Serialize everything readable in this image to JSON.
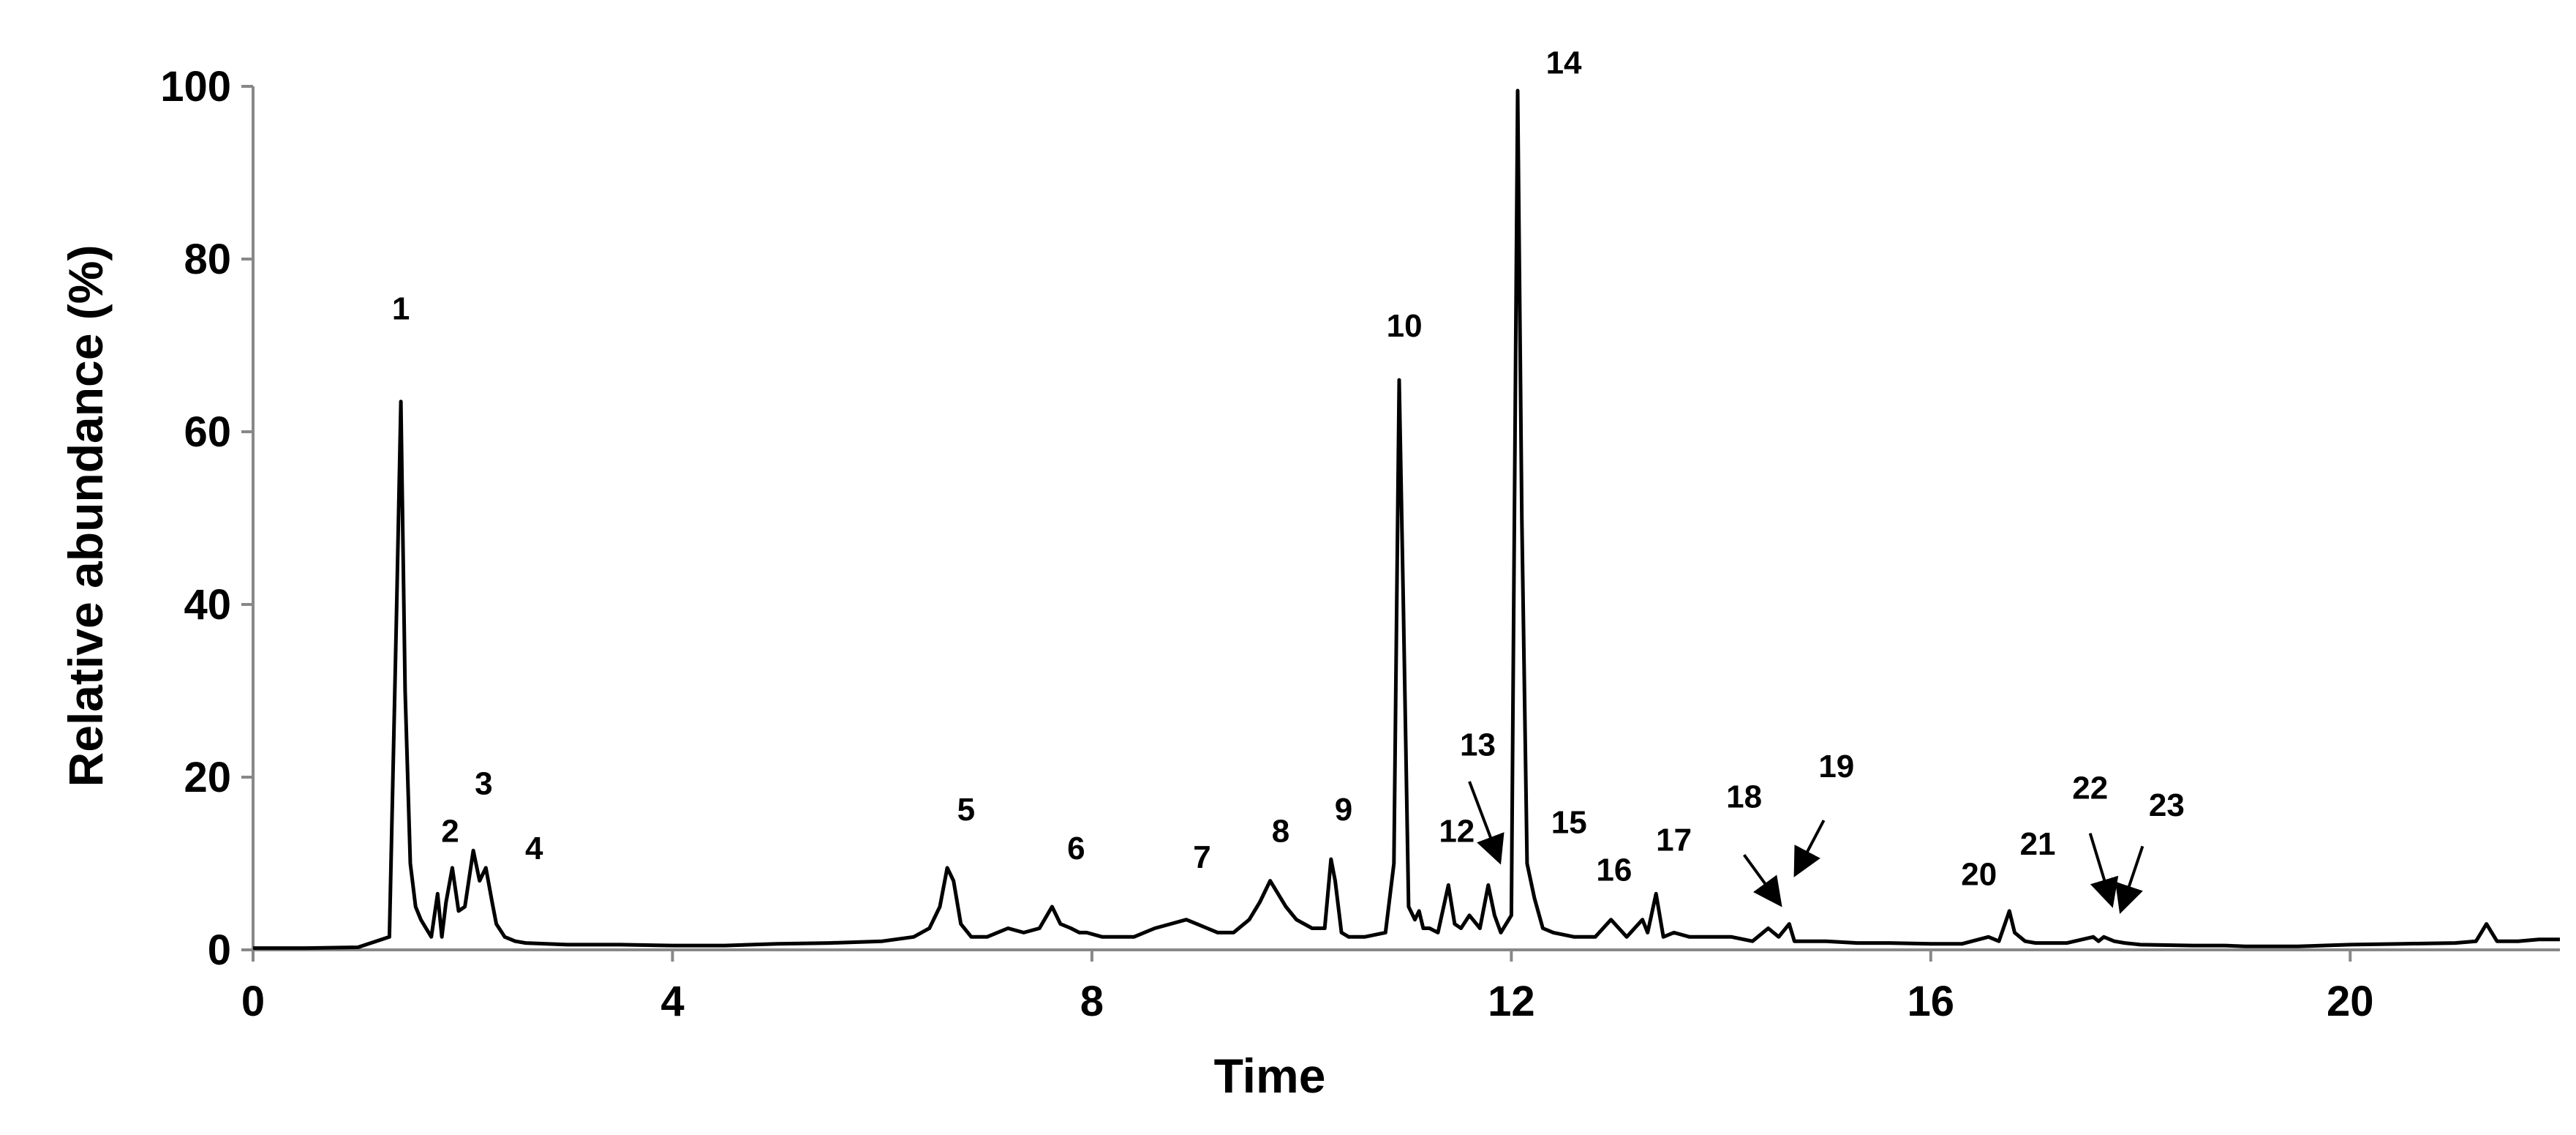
{
  "chart_data": {
    "type": "line",
    "title": "",
    "xlabel": "Time",
    "ylabel": "Relative abundance (%)",
    "xlim": [
      0,
      22
    ],
    "ylim": [
      0,
      100
    ],
    "xticks": [
      0,
      4,
      8,
      12,
      16,
      20
    ],
    "yticks": [
      0,
      20,
      40,
      60,
      80,
      100
    ],
    "grid": false,
    "series": [
      {
        "x": [
          0,
          0.5,
          1.0,
          1.3,
          1.37,
          1.41,
          1.45,
          1.5,
          1.55,
          1.6,
          1.65,
          1.7,
          1.76,
          1.8,
          1.84,
          1.9,
          1.96,
          2.02,
          2.1,
          2.16,
          2.22,
          2.28,
          2.32,
          2.4,
          2.5,
          2.6,
          3.0,
          3.5,
          4.0,
          4.5,
          5.0,
          5.5,
          6.0,
          6.3,
          6.45,
          6.55,
          6.62,
          6.68,
          6.75,
          6.85,
          7.0,
          7.2,
          7.35,
          7.5,
          7.62,
          7.7,
          7.8,
          7.88,
          7.95,
          8.1,
          8.4,
          8.6,
          8.75,
          8.9,
          9.0,
          9.1,
          9.2,
          9.35,
          9.5,
          9.6,
          9.7,
          9.75,
          9.85,
          9.95,
          10.1,
          10.22,
          10.28,
          10.32,
          10.38,
          10.45,
          10.6,
          10.8,
          10.88,
          10.93,
          10.97,
          11.02,
          11.08,
          11.12,
          11.16,
          11.22,
          11.3,
          11.4,
          11.46,
          11.52,
          11.6,
          11.7,
          11.78,
          11.84,
          11.9,
          12.0,
          12.06,
          12.1,
          12.15,
          12.22,
          12.3,
          12.4,
          12.6,
          12.8,
          12.95,
          13.1,
          13.25,
          13.3,
          13.38,
          13.45,
          13.55,
          13.7,
          13.9,
          14.1,
          14.3,
          14.45,
          14.55,
          14.65,
          14.7,
          14.8,
          15.0,
          15.3,
          15.6,
          16.0,
          16.3,
          16.55,
          16.65,
          16.75,
          16.8,
          16.9,
          17.0,
          17.3,
          17.55,
          17.6,
          17.65,
          17.75,
          17.85,
          18.0,
          18.5,
          18.8,
          19.0,
          19.5,
          20.0,
          20.5,
          21.0,
          21.2,
          21.3,
          21.4,
          21.6,
          21.8,
          22.0
        ],
        "y": [
          0.2,
          0.2,
          0.3,
          1.5,
          40.0,
          63.5,
          30.0,
          10.0,
          5.0,
          3.5,
          2.5,
          1.5,
          6.5,
          1.5,
          5.5,
          9.5,
          4.5,
          5.0,
          11.5,
          8.0,
          9.5,
          5.5,
          3.0,
          1.5,
          1.0,
          0.8,
          0.6,
          0.6,
          0.5,
          0.5,
          0.7,
          0.8,
          1.0,
          1.5,
          2.5,
          5.0,
          9.5,
          8.0,
          3.0,
          1.5,
          1.5,
          2.5,
          2.0,
          2.5,
          5.0,
          3.0,
          2.5,
          2.0,
          2.0,
          1.5,
          1.5,
          2.5,
          3.0,
          3.5,
          3.0,
          2.5,
          2.0,
          2.0,
          3.5,
          5.5,
          8.0,
          7.0,
          5.0,
          3.5,
          2.5,
          2.5,
          10.5,
          8.0,
          2.0,
          1.5,
          1.5,
          2.0,
          10.0,
          66.0,
          40.0,
          5.0,
          3.5,
          4.5,
          2.5,
          2.5,
          2.0,
          7.5,
          3.0,
          2.5,
          4.0,
          2.5,
          7.5,
          4.0,
          2.0,
          4.0,
          99.5,
          50.0,
          10.0,
          6.0,
          2.5,
          2.0,
          1.5,
          1.5,
          3.5,
          1.5,
          3.5,
          2.0,
          6.5,
          1.5,
          2.0,
          1.5,
          1.5,
          1.5,
          1.0,
          2.5,
          1.5,
          3.0,
          1.0,
          1.0,
          1.0,
          0.8,
          0.8,
          0.7,
          0.7,
          1.5,
          1.0,
          4.5,
          2.0,
          1.0,
          0.8,
          0.8,
          1.5,
          1.0,
          1.5,
          1.0,
          0.8,
          0.6,
          0.5,
          0.5,
          0.4,
          0.4,
          0.6,
          0.7,
          0.8,
          1.0,
          3.0,
          1.0,
          1.0,
          1.2,
          1.2
        ]
      }
    ],
    "annotations": [
      {
        "text": "1",
        "x": 1.41,
        "y": 73
      },
      {
        "text": "2",
        "x": 1.88,
        "y": 12.5
      },
      {
        "text": "3",
        "x": 2.2,
        "y": 18
      },
      {
        "text": "4",
        "x": 2.68,
        "y": 10.5
      },
      {
        "text": "5",
        "x": 6.8,
        "y": 15
      },
      {
        "text": "6",
        "x": 7.85,
        "y": 10.5
      },
      {
        "text": "7",
        "x": 9.05,
        "y": 9.5
      },
      {
        "text": "8",
        "x": 9.8,
        "y": 12.5
      },
      {
        "text": "9",
        "x": 10.4,
        "y": 15
      },
      {
        "text": "10",
        "x": 10.98,
        "y": 71
      },
      {
        "text": "12",
        "x": 11.48,
        "y": 12.5
      },
      {
        "text": "13",
        "x": 11.68,
        "y": 22.5
      },
      {
        "text": "14",
        "x": 12.5,
        "y": 101.5
      },
      {
        "text": "15",
        "x": 12.55,
        "y": 13.5
      },
      {
        "text": "16",
        "x": 12.98,
        "y": 8
      },
      {
        "text": "17",
        "x": 13.55,
        "y": 11.5
      },
      {
        "text": "18",
        "x": 14.22,
        "y": 16.5
      },
      {
        "text": "19",
        "x": 15.1,
        "y": 20
      },
      {
        "text": "20",
        "x": 16.46,
        "y": 7.5
      },
      {
        "text": "21",
        "x": 17.02,
        "y": 11
      },
      {
        "text": "22",
        "x": 17.52,
        "y": 17.5
      },
      {
        "text": "23",
        "x": 18.25,
        "y": 15.5
      }
    ],
    "arrows": [
      {
        "label": "13",
        "from": [
          11.6,
          19.5
        ],
        "to": [
          11.88,
          10.5
        ]
      },
      {
        "label": "18",
        "from": [
          14.22,
          11.0
        ],
        "to": [
          14.55,
          5.5
        ]
      },
      {
        "label": "19",
        "from": [
          14.98,
          15.0
        ],
        "to": [
          14.72,
          9.0
        ]
      },
      {
        "label": "22",
        "from": [
          17.52,
          13.5
        ],
        "to": [
          17.72,
          5.5
        ]
      },
      {
        "label": "23",
        "from": [
          18.02,
          12.0
        ],
        "to": [
          17.82,
          4.8
        ]
      }
    ]
  }
}
